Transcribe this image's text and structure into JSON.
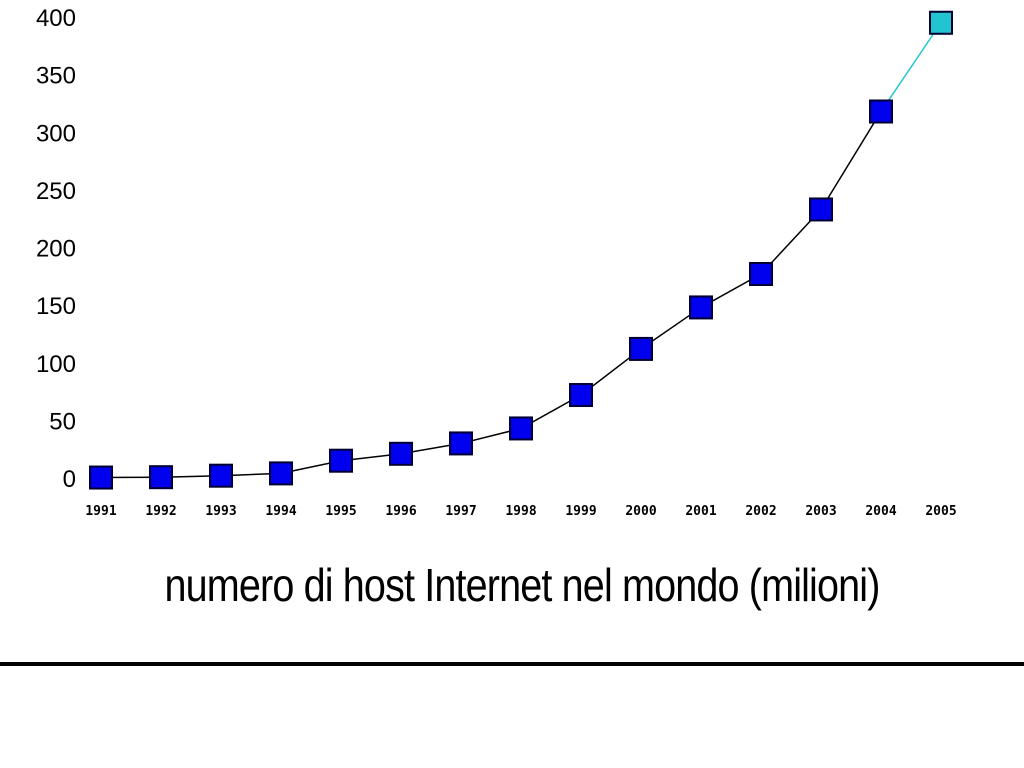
{
  "caption": "numero di host Internet nel mondo (milioni)",
  "chart_data": {
    "type": "line",
    "title": "",
    "xlabel": "",
    "ylabel": "",
    "categories": [
      "1991",
      "1992",
      "1993",
      "1994",
      "1995",
      "1996",
      "1997",
      "1998",
      "1999",
      "2000",
      "2001",
      "2002",
      "2003",
      "2004",
      "2005"
    ],
    "values": [
      0.4,
      0.7,
      2,
      4,
      15,
      21,
      30,
      43,
      72,
      112,
      148,
      177,
      233,
      318,
      395
    ],
    "yticks": [
      0,
      50,
      100,
      150,
      200,
      250,
      300,
      350,
      400
    ],
    "ylim": [
      0,
      400
    ],
    "grid": false,
    "legend": false,
    "projected_last_point": true,
    "colors": {
      "marker": "#0000ee",
      "marker_projected": "#22c4d0",
      "marker_border": "#000033",
      "line": "#000000",
      "line_projected": "#22c4d0"
    }
  }
}
